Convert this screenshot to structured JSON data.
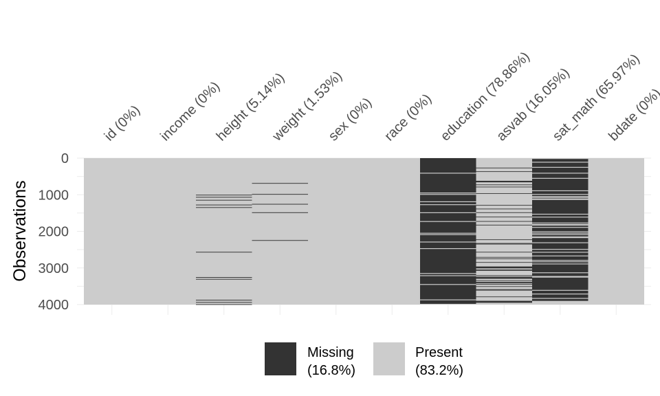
{
  "chart_data": {
    "type": "heatmap",
    "title": "",
    "xlabel": "",
    "ylabel": "Observations",
    "ylim": [
      0,
      4000
    ],
    "y_ticks": [
      0,
      1000,
      2000,
      3000,
      4000
    ],
    "n_rows": 4000,
    "columns": [
      {
        "name": "id",
        "label": "id (0%)",
        "missing_pct": 0,
        "missing_rows": []
      },
      {
        "name": "income",
        "label": "income (0%)",
        "missing_pct": 0,
        "missing_rows": []
      },
      {
        "name": "height",
        "label": "height (5.14%)",
        "missing_pct": 5.14,
        "missing_rows": [
          1000,
          1060,
          1140,
          1270,
          1340,
          2560,
          3250,
          3300,
          3870,
          3930,
          3990
        ]
      },
      {
        "name": "weight",
        "label": "weight (1.53%)",
        "missing_pct": 1.53,
        "missing_rows": [
          680,
          980,
          1250,
          1480,
          2240
        ]
      },
      {
        "name": "sex",
        "label": "sex (0%)",
        "missing_pct": 0,
        "missing_rows": []
      },
      {
        "name": "race",
        "label": "race (0%)",
        "missing_pct": 0,
        "missing_rows": []
      },
      {
        "name": "education",
        "label": "education (78.86%)",
        "missing_pct": 78.86,
        "missing_rows": []
      },
      {
        "name": "asvab",
        "label": "asvab (16.05%)",
        "missing_pct": 16.05,
        "missing_rows": []
      },
      {
        "name": "sat_math",
        "label": "sat_math (65.97%)",
        "missing_pct": 65.97,
        "missing_rows": []
      },
      {
        "name": "bdate",
        "label": "bdate (0%)",
        "missing_pct": 0,
        "missing_rows": []
      }
    ],
    "legend": [
      {
        "key": "missing",
        "label": "Missing",
        "pct": "(16.8%)",
        "color": "#333333"
      },
      {
        "key": "present",
        "label": "Present",
        "pct": "(83.2%)",
        "color": "#cccccc"
      }
    ],
    "legend_position": "bottom",
    "grid": true
  },
  "colors": {
    "missing": "#333333",
    "present": "#cccccc",
    "grid": "#ebebeb",
    "text": "#4d4d4d"
  }
}
